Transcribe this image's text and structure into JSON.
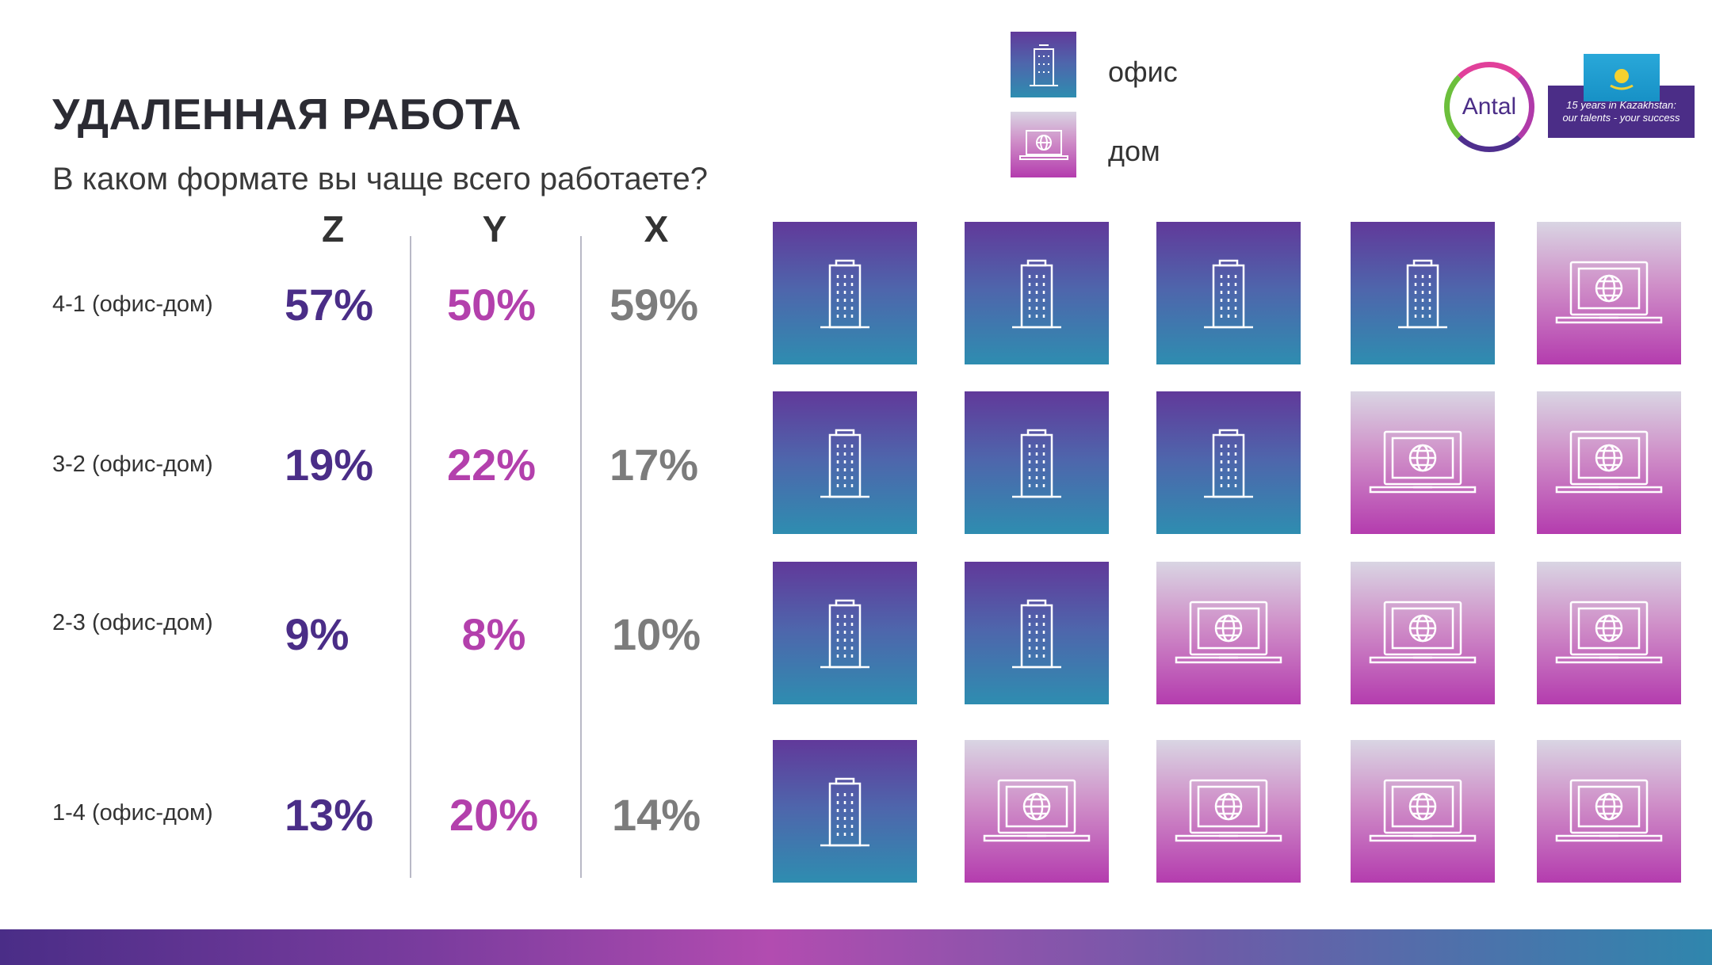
{
  "header": {
    "title": "УДАЛЕННАЯ РАБОТА",
    "subtitle": "В каком формате вы чаще всего работаете?"
  },
  "legend": {
    "office_label": "офис",
    "home_label": "дом"
  },
  "logo": {
    "brand": "Antal",
    "tagline_line1": "15 years in Kazakhstan:",
    "tagline_line2": "our talents - your success"
  },
  "colors": {
    "z": "#4a2d87",
    "y": "#b340ac",
    "x": "#7c7c7c"
  },
  "chart_data": {
    "type": "table",
    "title": "В каком формате вы чаще всего работаете?",
    "columns": [
      "Z",
      "Y",
      "X"
    ],
    "rows": [
      {
        "label": "4-1 (офис-дом)",
        "values": [
          "57%",
          "50%",
          "59%"
        ],
        "office_days": 4
      },
      {
        "label": "3-2 (офис-дом)",
        "values": [
          "19%",
          "22%",
          "17%"
        ],
        "office_days": 3
      },
      {
        "label": "2-3 (офис-дом)",
        "values": [
          "9%",
          "8%",
          "10%"
        ],
        "office_days": 2
      },
      {
        "label": "1-4 (офис-дом)",
        "values": [
          "13%",
          "20%",
          "14%"
        ],
        "office_days": 1
      }
    ],
    "tiles_per_row": 5
  }
}
